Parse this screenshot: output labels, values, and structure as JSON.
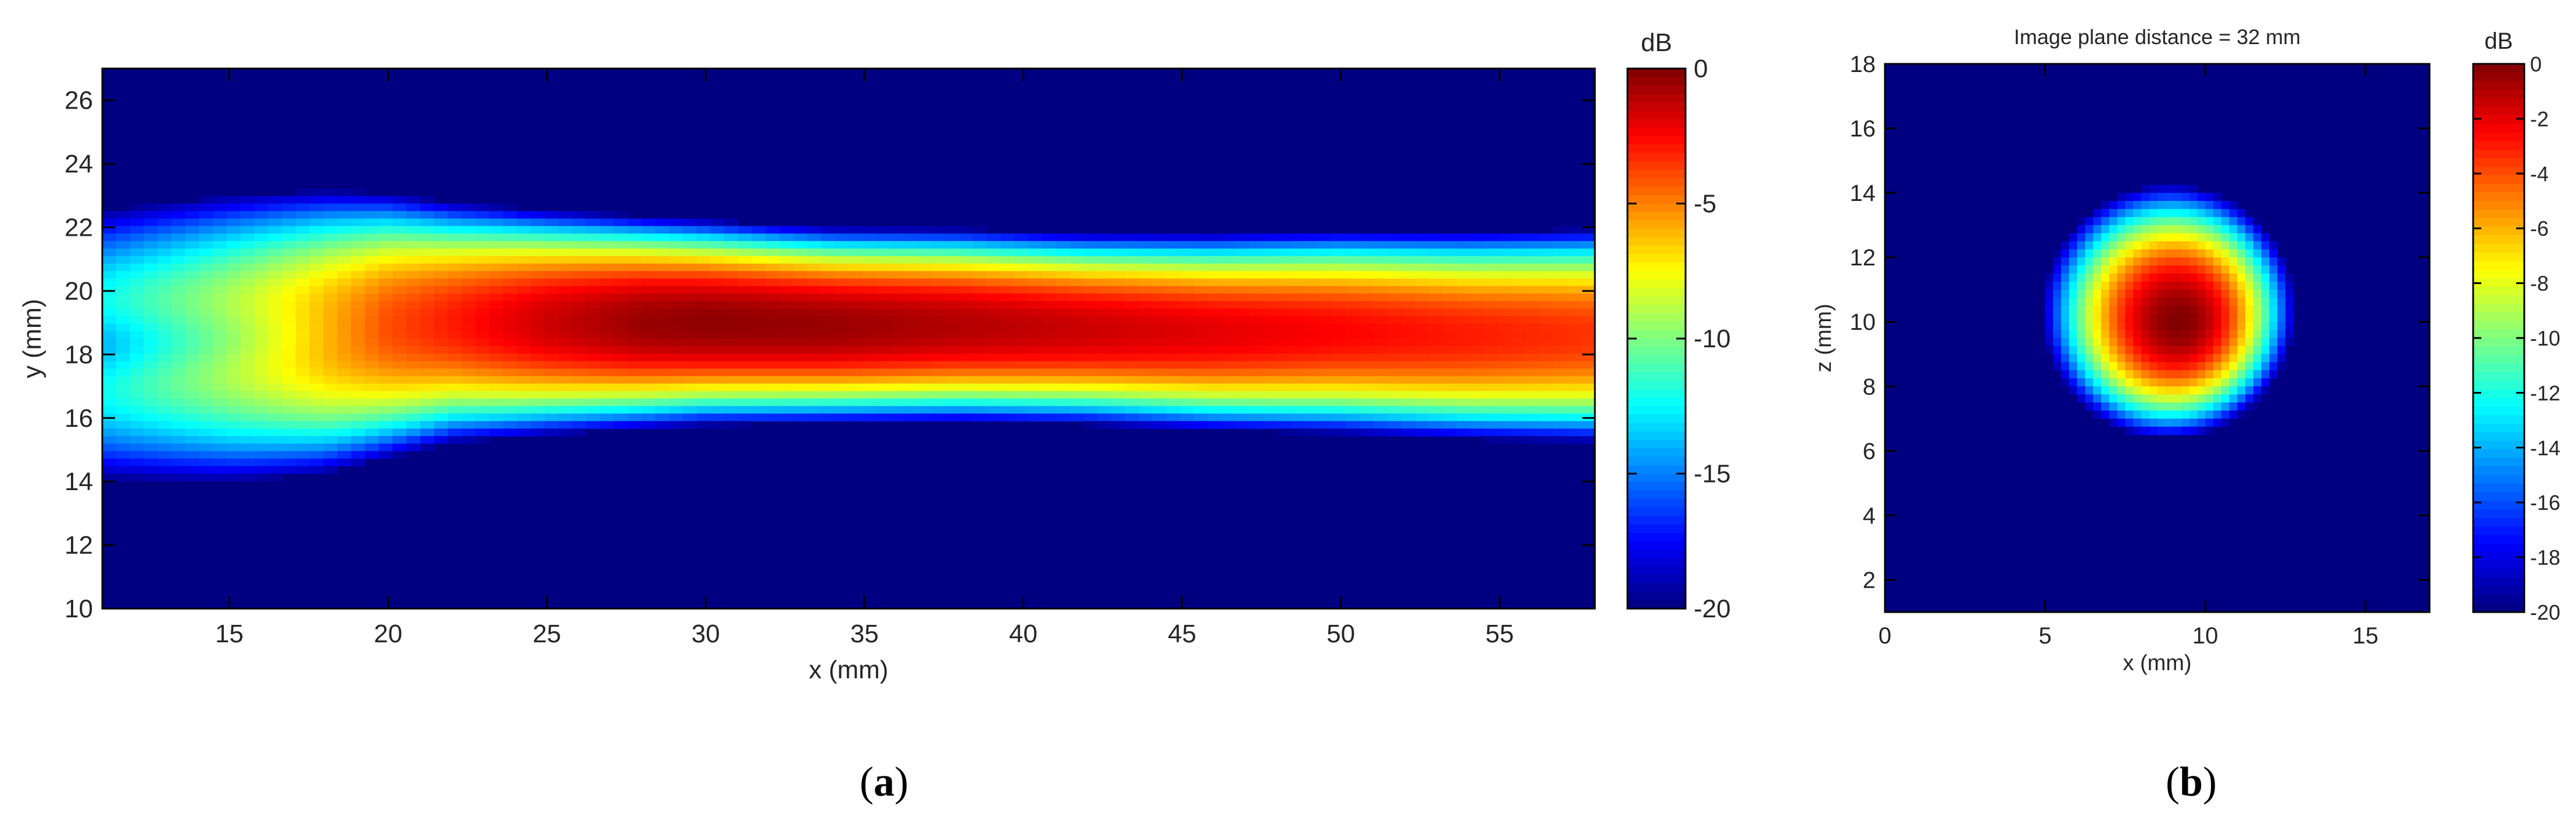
{
  "panels": [
    {
      "caption": "a",
      "chart_data": {
        "type": "heatmap",
        "title": "",
        "xlabel": "x (mm)",
        "ylabel": "y (mm)",
        "xlim": [
          11,
          58
        ],
        "ylim": [
          10,
          27
        ],
        "xticks": [
          15,
          20,
          25,
          30,
          35,
          40,
          45,
          50,
          55
        ],
        "yticks": [
          10,
          12,
          14,
          16,
          18,
          20,
          22,
          24,
          26
        ],
        "colorbar": {
          "label": "dB",
          "range": [
            -20,
            0
          ],
          "ticks": [
            0,
            -5,
            -10,
            -15,
            -20
          ],
          "colormap": "jet"
        },
        "beam": {
          "description_values": "centerline y and peak dB along x",
          "x": [
            11,
            15,
            18,
            20,
            22,
            25,
            28,
            30,
            34,
            38,
            42,
            46,
            50,
            54,
            58
          ],
          "center_y": [
            18.3,
            18.5,
            18.7,
            18.9,
            19.0,
            19.0,
            19.0,
            19.0,
            18.9,
            18.9,
            18.8,
            18.7,
            18.7,
            18.6,
            18.6
          ],
          "peak_db": [
            -11,
            -8,
            -5.5,
            -4,
            -3,
            -1.5,
            -0.5,
            -0.3,
            -0.5,
            -1,
            -1.5,
            -2,
            -2.5,
            -3,
            -3.5
          ],
          "halfwidth_10db": [
            4.5,
            4.2,
            3.8,
            3.4,
            3.0,
            2.7,
            2.5,
            2.4,
            2.3,
            2.3,
            2.3,
            2.4,
            2.5,
            2.6,
            2.7
          ]
        }
      }
    },
    {
      "caption": "b",
      "chart_data": {
        "type": "heatmap",
        "title": "Image plane distance = 32 mm",
        "xlabel": "x (mm)",
        "ylabel": "z (mm)",
        "xlim": [
          0,
          17
        ],
        "ylim": [
          1,
          18
        ],
        "xticks": [
          0,
          5,
          10,
          15
        ],
        "yticks": [
          2,
          4,
          6,
          8,
          10,
          12,
          14,
          16,
          18
        ],
        "colorbar": {
          "label": "dB",
          "range": [
            -20,
            0
          ],
          "ticks": [
            0,
            -2,
            -4,
            -6,
            -8,
            -10,
            -12,
            -14,
            -16,
            -18,
            -20
          ],
          "colormap": "jet"
        },
        "spot": {
          "center_x": 9.2,
          "center_z": 10.0,
          "peak_db": 0,
          "radius_minus10db_mm": 2.8
        }
      }
    }
  ]
}
